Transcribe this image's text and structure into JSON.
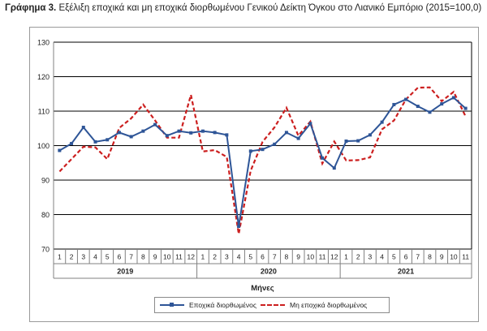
{
  "header": {
    "title_bold": "Γράφημα 3.",
    "title_text": " Εξέλιξη εποχικά και μη εποχικά διορθωμένου Γενικού Δείκτη Όγκου στο Λιανικό Εμπόριο (2015=100,0)"
  },
  "colors": {
    "seasonal": "#2e5597",
    "nonseasonal": "#cc1f1f",
    "grid": "#000000",
    "axis": "#808080"
  },
  "chart_data": {
    "type": "line",
    "title": "Εξέλιξη εποχικά και μη εποχικά διορθωμένου Γενικού Δείκτη Όγκου στο Λιανικό Εμπόριο (2015=100,0)",
    "xlabel": "Μήνες",
    "ylabel": "",
    "ylim": [
      70,
      130
    ],
    "yticks": [
      70,
      80,
      90,
      100,
      110,
      120,
      130
    ],
    "grid": true,
    "legend_position": "bottom",
    "categories": [
      "1",
      "2",
      "3",
      "4",
      "5",
      "6",
      "7",
      "8",
      "9",
      "10",
      "11",
      "12",
      "1",
      "2",
      "3",
      "4",
      "5",
      "6",
      "7",
      "8",
      "9",
      "10",
      "11",
      "12",
      "1",
      "2",
      "3",
      "4",
      "5",
      "6",
      "7",
      "8",
      "9",
      "10",
      "11"
    ],
    "year_groups": [
      {
        "label": "2019",
        "count": 12
      },
      {
        "label": "2020",
        "count": 12
      },
      {
        "label": "2021",
        "count": 11
      }
    ],
    "series": [
      {
        "name": "Εποχικά διορθωμένος",
        "style": "solid-marker",
        "values": [
          98.6,
          100.6,
          105.3,
          101.1,
          101.7,
          103.8,
          102.6,
          104.2,
          106.1,
          102.9,
          104.2,
          103.7,
          104.2,
          103.8,
          103.1,
          76.6,
          98.4,
          98.9,
          100.4,
          103.8,
          102.1,
          106.4,
          96.4,
          93.5,
          101.3,
          101.4,
          103.1,
          106.8,
          111.9,
          113.4,
          111.4,
          109.7,
          112.1,
          113.9,
          110.8
        ]
      },
      {
        "name": "Μη εποχικά διορθωμένος",
        "style": "dashed",
        "values": [
          92.5,
          96.1,
          99.7,
          99.5,
          96.1,
          105.1,
          107.9,
          111.9,
          107.3,
          102.3,
          102.3,
          114.7,
          98.3,
          98.7,
          96.7,
          74.4,
          92.7,
          101.1,
          105.3,
          111.0,
          102.9,
          107.0,
          94.8,
          101.2,
          95.7,
          95.8,
          96.6,
          104.7,
          107.3,
          113.4,
          116.8,
          116.9,
          112.9,
          115.6,
          108.5
        ]
      }
    ]
  }
}
